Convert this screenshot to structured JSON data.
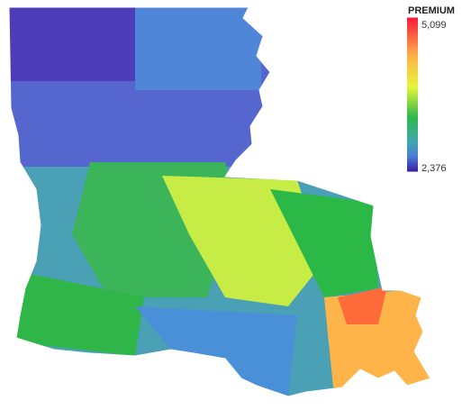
{
  "legend": {
    "title": "PREMIUM",
    "max": {
      "value": 5099,
      "label": "5,099"
    },
    "min": {
      "value": 2376,
      "label": "2,376"
    }
  }
}
